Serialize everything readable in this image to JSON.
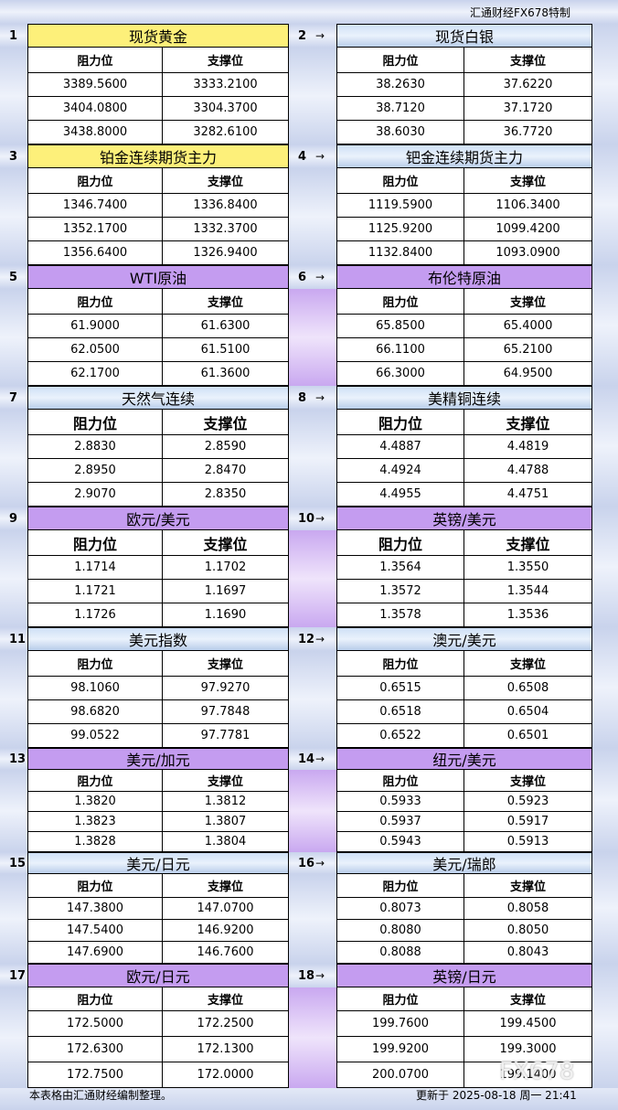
{
  "header": {
    "title": "汇通财经FX678特制"
  },
  "footer": {
    "note": "本表格由汇通财经编制整理。",
    "updated": "更新于 2025-08-18 周一 21:41"
  },
  "watermark": "FX678",
  "panels": [
    {
      "index": "1",
      "title": "现货黄金",
      "header": [
        "阻力位",
        "支撑位"
      ],
      "rows": [
        [
          "3389.5600",
          "3333.2100"
        ],
        [
          "3404.0800",
          "3304.3700"
        ],
        [
          "3438.8000",
          "3282.6100"
        ]
      ]
    },
    {
      "index": "2",
      "title": "现货白银",
      "header": [
        "阻力位",
        "支撑位"
      ],
      "rows": [
        [
          "38.2630",
          "37.6220"
        ],
        [
          "38.7120",
          "37.1720"
        ],
        [
          "38.6030",
          "36.7720"
        ]
      ]
    },
    {
      "index": "3",
      "title": "铂金连续期货主力",
      "header": [
        "阻力位",
        "支撑位"
      ],
      "rows": [
        [
          "1346.7400",
          "1336.8400"
        ],
        [
          "1352.1700",
          "1332.3700"
        ],
        [
          "1356.6400",
          "1326.9400"
        ]
      ]
    },
    {
      "index": "4",
      "title": "钯金连续期货主力",
      "header": [
        "阻力位",
        "支撑位"
      ],
      "rows": [
        [
          "1119.5900",
          "1106.3400"
        ],
        [
          "1125.9200",
          "1099.4200"
        ],
        [
          "1132.8400",
          "1093.0900"
        ]
      ]
    },
    {
      "index": "5",
      "title": "WTI原油",
      "header": [
        "阻力位",
        "支撑位"
      ],
      "rows": [
        [
          "61.9000",
          "61.6300"
        ],
        [
          "62.0500",
          "61.5100"
        ],
        [
          "62.1700",
          "61.3600"
        ]
      ]
    },
    {
      "index": "6",
      "title": "布伦特原油",
      "header": [
        "阻力位",
        "支撑位"
      ],
      "rows": [
        [
          "65.8500",
          "65.4000"
        ],
        [
          "66.1100",
          "65.2100"
        ],
        [
          "66.3000",
          "64.9500"
        ]
      ]
    },
    {
      "index": "7",
      "title": "天然气连续",
      "header": [
        "阻力位",
        "支撑位"
      ],
      "rows": [
        [
          "2.8830",
          "2.8590"
        ],
        [
          "2.8950",
          "2.8470"
        ],
        [
          "2.9070",
          "2.8350"
        ]
      ]
    },
    {
      "index": "8",
      "title": "美精铜连续",
      "header": [
        "阻力位",
        "支撑位"
      ],
      "rows": [
        [
          "4.4887",
          "4.4819"
        ],
        [
          "4.4924",
          "4.4788"
        ],
        [
          "4.4955",
          "4.4751"
        ]
      ]
    },
    {
      "index": "9",
      "title": "欧元/美元",
      "header": [
        "阻力位",
        "支撑位"
      ],
      "rows": [
        [
          "1.1714",
          "1.1702"
        ],
        [
          "1.1721",
          "1.1697"
        ],
        [
          "1.1726",
          "1.1690"
        ]
      ]
    },
    {
      "index": "10",
      "title": "英镑/美元",
      "header": [
        "阻力位",
        "支撑位"
      ],
      "rows": [
        [
          "1.3564",
          "1.3550"
        ],
        [
          "1.3572",
          "1.3544"
        ],
        [
          "1.3578",
          "1.3536"
        ]
      ]
    },
    {
      "index": "11",
      "title": "美元指数",
      "header": [
        "阻力位",
        "支撑位"
      ],
      "rows": [
        [
          "98.1060",
          "97.9270"
        ],
        [
          "98.6820",
          "97.7848"
        ],
        [
          "99.0522",
          "97.7781"
        ]
      ]
    },
    {
      "index": "12",
      "title": "澳元/美元",
      "header": [
        "阻力位",
        "支撑位"
      ],
      "rows": [
        [
          "0.6515",
          "0.6508"
        ],
        [
          "0.6518",
          "0.6504"
        ],
        [
          "0.6522",
          "0.6501"
        ]
      ]
    },
    {
      "index": "13",
      "title": "美元/加元",
      "header": [
        "阻力位",
        "支撑位"
      ],
      "rows": [
        [
          "1.3820",
          "1.3812"
        ],
        [
          "1.3823",
          "1.3807"
        ],
        [
          "1.3828",
          "1.3804"
        ]
      ]
    },
    {
      "index": "14",
      "title": "纽元/美元",
      "header": [
        "阻力位",
        "支撑位"
      ],
      "rows": [
        [
          "0.5933",
          "0.5923"
        ],
        [
          "0.5937",
          "0.5917"
        ],
        [
          "0.5943",
          "0.5913"
        ]
      ]
    },
    {
      "index": "15",
      "title": "美元/日元",
      "header": [
        "阻力位",
        "支撑位"
      ],
      "rows": [
        [
          "147.3800",
          "147.0700"
        ],
        [
          "147.5400",
          "146.9200"
        ],
        [
          "147.6900",
          "146.7600"
        ]
      ]
    },
    {
      "index": "16",
      "title": "美元/瑞郎",
      "header": [
        "阻力位",
        "支撑位"
      ],
      "rows": [
        [
          "0.8073",
          "0.8058"
        ],
        [
          "0.8080",
          "0.8050"
        ],
        [
          "0.8088",
          "0.8043"
        ]
      ]
    },
    {
      "index": "17",
      "title": "欧元/日元",
      "header": [
        "阻力位",
        "支撑位"
      ],
      "rows": [
        [
          "172.5000",
          "172.2500"
        ],
        [
          "172.6300",
          "172.1300"
        ],
        [
          "172.7500",
          "172.0000"
        ]
      ]
    },
    {
      "index": "18",
      "title": "英镑/日元",
      "header": [
        "阻力位",
        "支撑位"
      ],
      "rows": [
        [
          "199.7600",
          "199.4500"
        ],
        [
          "199.9200",
          "199.3000"
        ],
        [
          "200.0700",
          "199.1400"
        ]
      ]
    }
  ]
}
